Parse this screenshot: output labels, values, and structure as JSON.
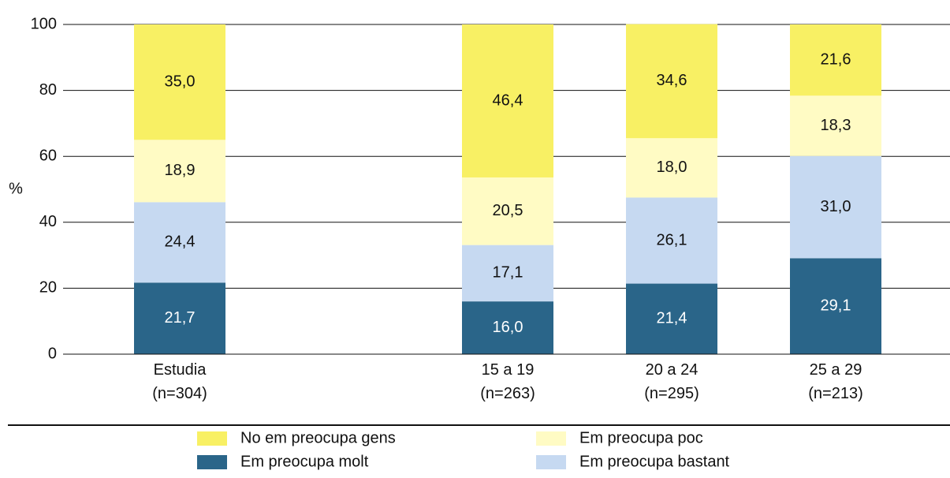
{
  "chart_data": {
    "type": "stacked_bar",
    "ylabel": "%",
    "categories": [
      "Estudia\n(n=304)",
      null,
      "15 a 19\n(n=263)",
      "20 a 24\n(n=295)",
      "25 a 29\n(n=213)"
    ],
    "ylim": [
      0,
      100
    ],
    "yticks": [
      0,
      20,
      40,
      60,
      80,
      100
    ],
    "grid": true,
    "series": [
      {
        "name": "Em preocupa molt",
        "color": "#2a6589",
        "values": [
          21.7,
          null,
          16.0,
          21.4,
          29.1
        ],
        "value_labels": [
          "21,7",
          null,
          "16,0",
          "21,4",
          "29,1"
        ]
      },
      {
        "name": "Em preocupa bastant",
        "color": "#c6d9f1",
        "values": [
          24.4,
          null,
          17.1,
          26.1,
          31.0
        ],
        "value_labels": [
          "24,4",
          null,
          "17,1",
          "26,1",
          "31,0"
        ]
      },
      {
        "name": "Em preocupa poc",
        "color": "#fffbc4",
        "values": [
          18.9,
          null,
          20.5,
          18.0,
          18.3
        ],
        "value_labels": [
          "18,9",
          null,
          "20,5",
          "18,0",
          "18,3"
        ]
      },
      {
        "name": "No em preocupa gens",
        "color": "#f8f064",
        "values": [
          35.0,
          null,
          46.4,
          34.6,
          21.6
        ],
        "value_labels": [
          "35,0",
          null,
          "46,4",
          "34,6",
          "21,6"
        ]
      }
    ]
  }
}
